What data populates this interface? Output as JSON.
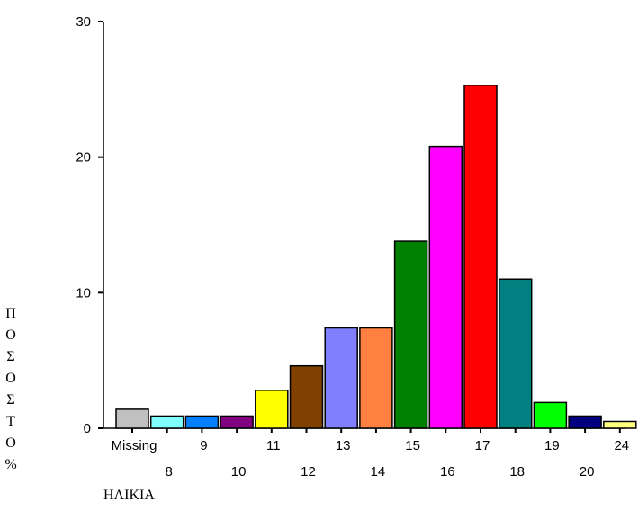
{
  "chart_data": {
    "type": "bar",
    "categories": [
      "Missing",
      "8",
      "9",
      "10",
      "11",
      "12",
      "13",
      "14",
      "15",
      "16",
      "17",
      "18",
      "19",
      "20",
      "24"
    ],
    "values": [
      1.4,
      0.9,
      0.9,
      0.9,
      2.8,
      4.6,
      7.4,
      7.4,
      13.8,
      20.8,
      25.3,
      11.0,
      1.9,
      0.9,
      0.5
    ],
    "colors": [
      "#c0c0c0",
      "#80ffff",
      "#0080ff",
      "#800080",
      "#ffff00",
      "#804000",
      "#8080ff",
      "#ff8040",
      "#008000",
      "#ff00ff",
      "#ff0000",
      "#008080",
      "#00ff00",
      "#000080",
      "#ffff80"
    ],
    "title": "",
    "xlabel": "ΗΛΙΚΙΑ",
    "ylabel": "ΠΟΣΟΣΤΟ %",
    "ylim": [
      0,
      30
    ],
    "yticks": [
      "0",
      "10",
      "20",
      "30"
    ],
    "grid": false,
    "legend": "none"
  }
}
